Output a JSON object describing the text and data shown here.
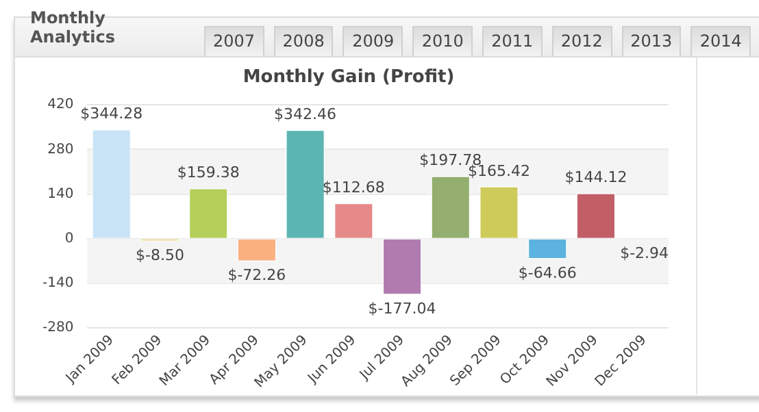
{
  "chart_data": {
    "type": "bar",
    "title": "Monthly Gain (Profit)",
    "annotations": [
      "Monthly Analytics",
      "2007",
      "2008",
      "2009",
      "2010",
      "2011",
      "2012",
      "2013",
      "2014"
    ],
    "categories": [
      "Jan 2009",
      "Feb 2009",
      "Mar 2009",
      "Apr 2009",
      "May 2009",
      "Jun 2009",
      "Jul 2009",
      "Aug 2009",
      "Sep 2009",
      "Oct 2009",
      "Nov 2009",
      "Dec 2009"
    ],
    "values": [
      344.28,
      -8.5,
      159.38,
      -72.26,
      342.46,
      112.68,
      -177.04,
      197.78,
      165.42,
      -64.66,
      144.12,
      -2.94
    ],
    "value_labels": [
      "$344.28",
      "$-8.50",
      "$159.38",
      "$-72.26",
      "$342.46",
      "$112.68",
      "$-177.04",
      "$197.78",
      "$165.42",
      "$-64.66",
      "$144.12",
      "$-2.94"
    ],
    "colors": [
      "#c9e3f6",
      "#f2d27a",
      "#b5cf5a",
      "#fbb080",
      "#5bb5b3",
      "#e58a88",
      "#b07cb0",
      "#93ae6e",
      "#cfcb5a",
      "#5cb3df",
      "#c25e65",
      "#d8d8d8"
    ],
    "ylim": [
      -280,
      420
    ],
    "yticks": [
      -280,
      -140,
      0,
      140,
      280,
      420
    ],
    "grid": "y",
    "legend": false
  }
}
